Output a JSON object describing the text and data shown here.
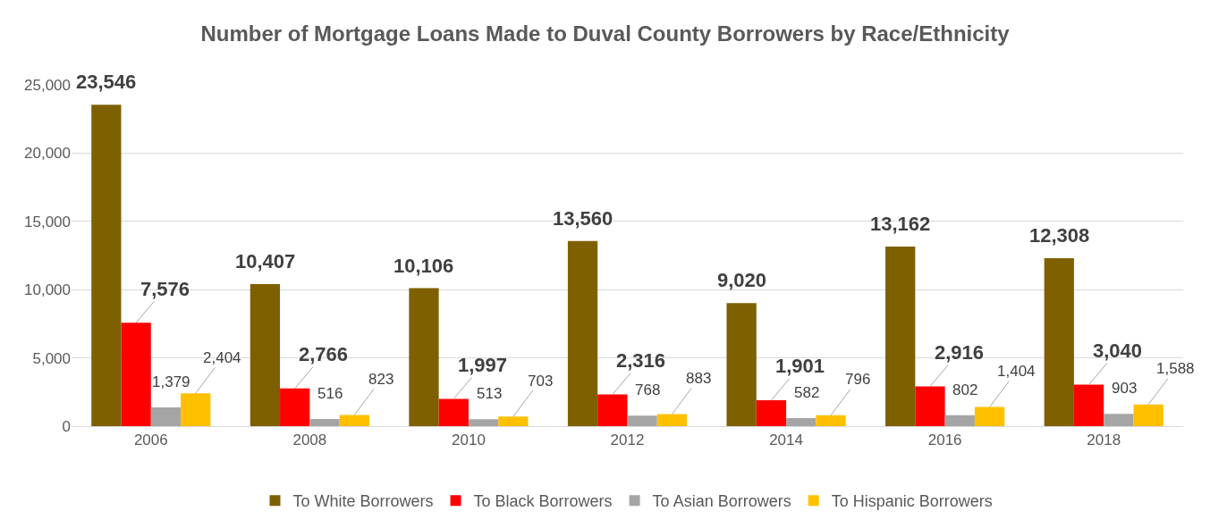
{
  "chart_data": {
    "type": "bar",
    "title": "Number of Mortgage Loans Made to Duval County Borrowers by Race/Ethnicity",
    "categories": [
      "2006",
      "2008",
      "2010",
      "2012",
      "2014",
      "2016",
      "2018"
    ],
    "series": [
      {
        "name": "To White Borrowers",
        "color": "#7f6000",
        "values": [
          23546,
          10407,
          10106,
          13560,
          9020,
          13162,
          12308
        ],
        "value_labels": [
          "23,546",
          "10,407",
          "10,106",
          "13,560",
          "9,020",
          "13,162",
          "12,308"
        ]
      },
      {
        "name": "To Black Borrowers",
        "color": "#ff0000",
        "values": [
          7576,
          2766,
          1997,
          2316,
          1901,
          2916,
          3040
        ],
        "value_labels": [
          "7,576",
          "2,766",
          "1,997",
          "2,316",
          "1,901",
          "2,916",
          "3,040"
        ]
      },
      {
        "name": "To Asian Borrowers",
        "color": "#a5a5a5",
        "values": [
          1379,
          516,
          513,
          768,
          582,
          802,
          903
        ],
        "value_labels": [
          "1,379",
          "516",
          "513",
          "768",
          "582",
          "802",
          "903"
        ]
      },
      {
        "name": "To Hispanic Borrowers",
        "color": "#ffc000",
        "values": [
          2404,
          823,
          703,
          883,
          796,
          1404,
          1588
        ],
        "value_labels": [
          "2,404",
          "823",
          "703",
          "883",
          "796",
          "1,404",
          "1,588"
        ]
      }
    ],
    "ylim": [
      0,
      25000
    ],
    "yticks": [
      {
        "value": 0,
        "label": "0"
      },
      {
        "value": 5000,
        "label": "5,000"
      },
      {
        "value": 10000,
        "label": "10,000"
      },
      {
        "value": 15000,
        "label": "15,000"
      },
      {
        "value": 20000,
        "label": "20,000"
      },
      {
        "value": 25000,
        "label": "25,000"
      }
    ],
    "grid": "y",
    "legend": "bottom"
  }
}
